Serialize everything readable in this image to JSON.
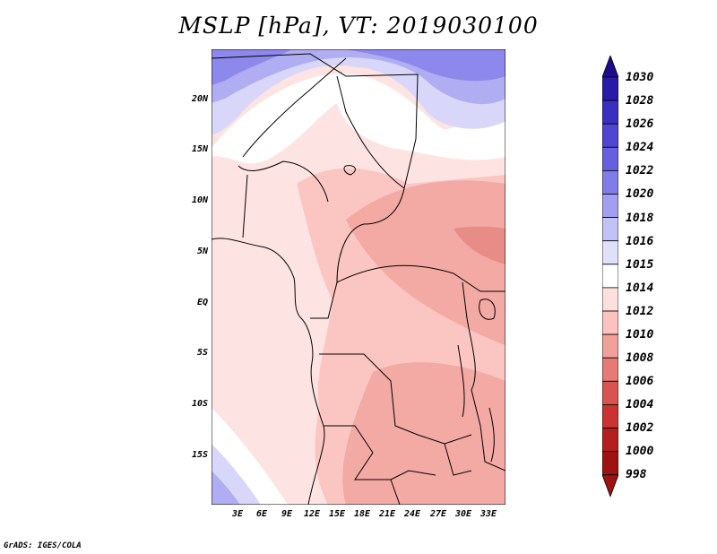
{
  "title": "MSLP [hPa], VT: 2019030100",
  "footer": "GrADS: IGES/COLA",
  "map": {
    "region": "Central / Southern Africa",
    "lat_labels": [
      "20N",
      "15N",
      "10N",
      "5N",
      "EQ",
      "5S",
      "10S",
      "15S"
    ],
    "lon_labels": [
      "3E",
      "6E",
      "9E",
      "12E",
      "15E",
      "18E",
      "21E",
      "24E",
      "27E",
      "30E",
      "33E"
    ],
    "lat_range": [
      -20,
      24.5
    ],
    "lon_range": [
      0,
      35
    ]
  },
  "colorbar": {
    "levels": [
      "1030",
      "1028",
      "1026",
      "1024",
      "1022",
      "1020",
      "1018",
      "1016",
      "1015",
      "1014",
      "1012",
      "1010",
      "1008",
      "1006",
      "1004",
      "1002",
      "1000",
      "998"
    ],
    "colors": [
      "#1d0d8c",
      "#2a1aa8",
      "#3b2fbf",
      "#4f46d2",
      "#6660de",
      "#827ce8",
      "#a29ff0",
      "#c3c2f6",
      "#e0e0fb",
      "#ffffff",
      "#fde0de",
      "#fbc2bf",
      "#f2a09c",
      "#e57a76",
      "#d85451",
      "#c93330",
      "#b41f1d",
      "#9e1210"
    ]
  }
}
